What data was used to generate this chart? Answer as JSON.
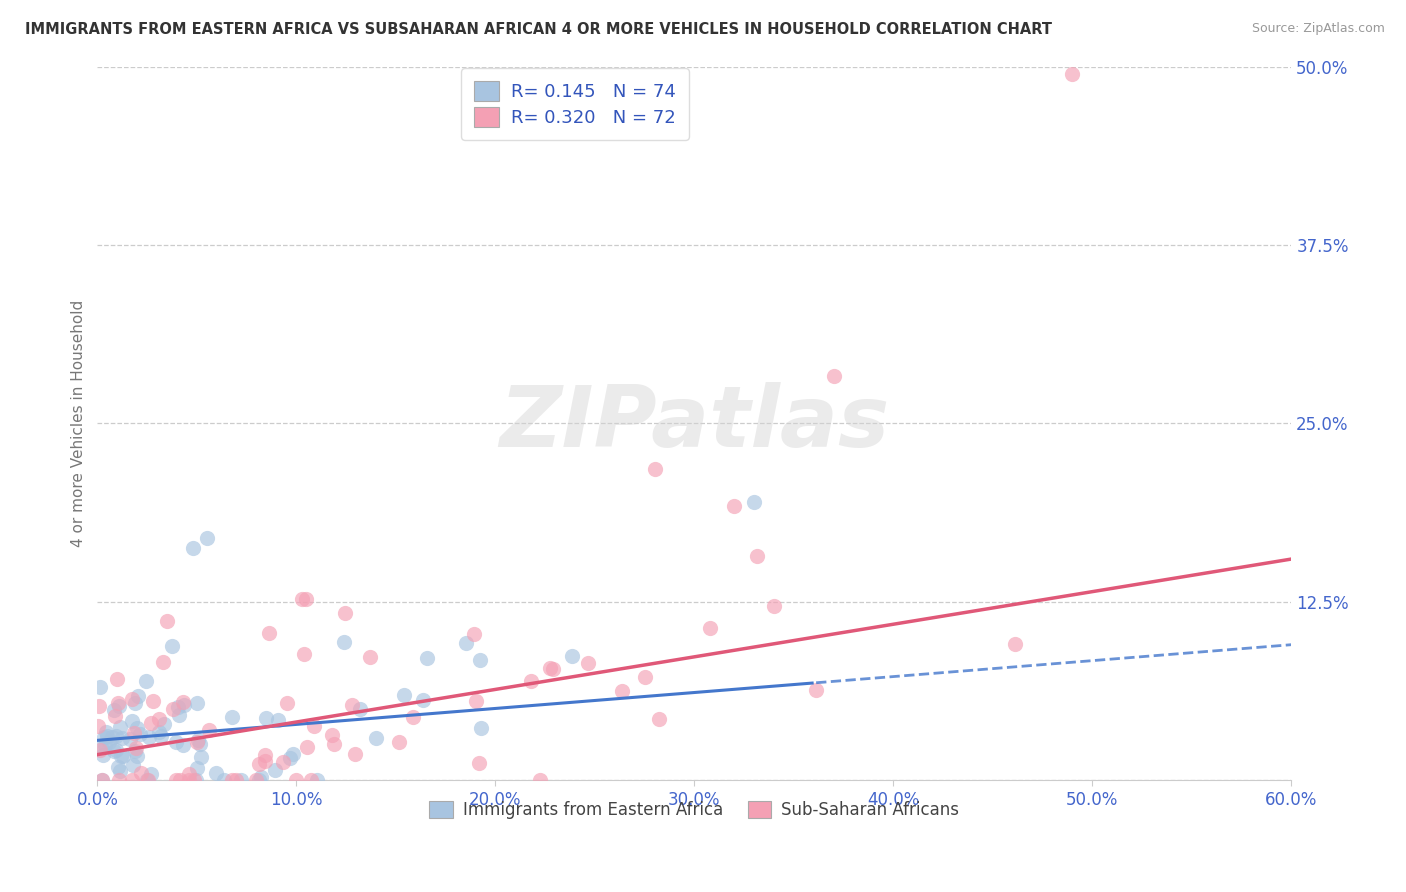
{
  "title": "IMMIGRANTS FROM EASTERN AFRICA VS SUBSAHARAN AFRICAN 4 OR MORE VEHICLES IN HOUSEHOLD CORRELATION CHART",
  "source": "Source: ZipAtlas.com",
  "ylabel": "4 or more Vehicles in Household",
  "series1_label": "Immigrants from Eastern Africa",
  "series2_label": "Sub-Saharan Africans",
  "series1_color": "#a8c4e0",
  "series2_color": "#f4a0b4",
  "series1_line_color": "#4477cc",
  "series2_line_color": "#e05878",
  "R1": 0.145,
  "N1": 74,
  "R2": 0.32,
  "N2": 72,
  "xlim": [
    0.0,
    0.6
  ],
  "ylim": [
    0.0,
    0.5
  ],
  "xticks": [
    0.0,
    0.1,
    0.2,
    0.3,
    0.4,
    0.5,
    0.6
  ],
  "yticks": [
    0.0,
    0.125,
    0.25,
    0.375,
    0.5
  ],
  "xticklabels": [
    "0.0%",
    "10.0%",
    "20.0%",
    "30.0%",
    "40.0%",
    "50.0%",
    "60.0%"
  ],
  "yticklabels_right": [
    "",
    "12.5%",
    "25.0%",
    "37.5%",
    "50.0%"
  ],
  "grid_color": "#cccccc",
  "background_color": "#ffffff",
  "watermark_text": "ZIPatlas",
  "legend_color": "#3355bb",
  "title_color": "#333333",
  "tick_color": "#4466cc",
  "blue_data_xlim": 0.36,
  "line1_start_x": 0.0,
  "line1_start_y": 0.028,
  "line1_end_x": 0.6,
  "line1_end_y": 0.095,
  "line2_start_x": 0.0,
  "line2_start_y": 0.018,
  "line2_end_x": 0.6,
  "line2_end_y": 0.155
}
